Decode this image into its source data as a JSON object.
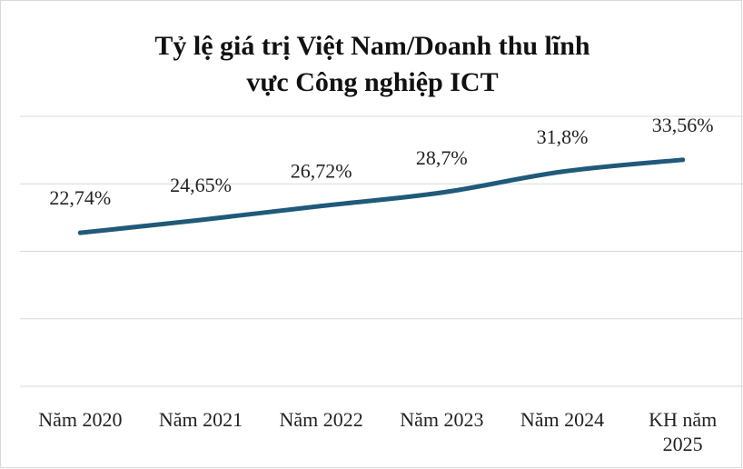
{
  "chart_data": {
    "type": "line",
    "title_lines": [
      "Tỷ lệ giá trị Việt Nam/Doanh thu lĩnh",
      "vực Công nghiệp ICT"
    ],
    "categories": [
      [
        "Năm 2020"
      ],
      [
        "Năm 2021"
      ],
      [
        "Năm 2022"
      ],
      [
        "Năm 2023"
      ],
      [
        "Năm 2024"
      ],
      [
        "KH năm",
        "2025"
      ]
    ],
    "series": [
      {
        "values": [
          22.74,
          24.65,
          26.72,
          28.7,
          31.8,
          33.56
        ],
        "data_labels": [
          "22,74%",
          "24,65%",
          "26,72%",
          "28,7%",
          "31,8%",
          "33,56%"
        ],
        "color": "#1f5a7a"
      }
    ],
    "ylim": [
      0,
      40
    ],
    "grid": true,
    "legend": "none",
    "axis_labels_visible": false,
    "grid_color": "#d9d9d9"
  }
}
